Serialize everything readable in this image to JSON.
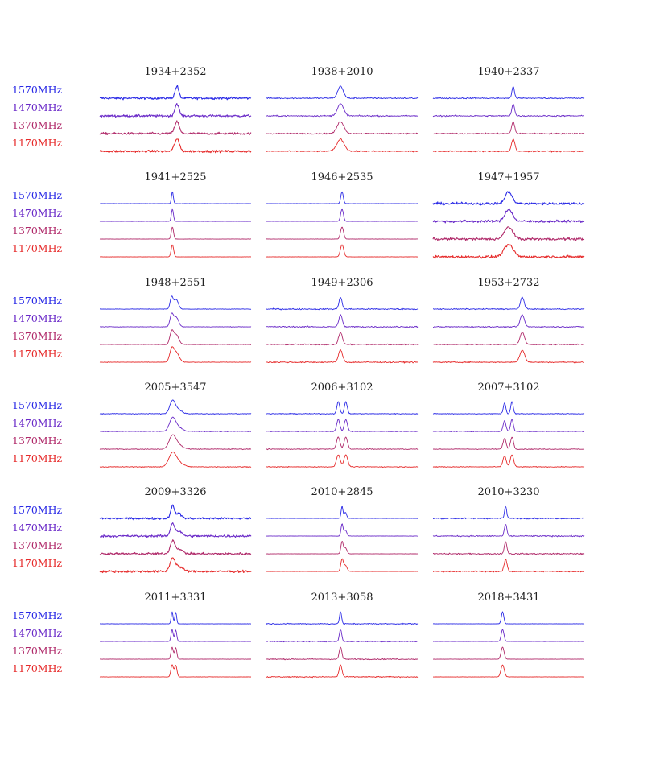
{
  "chart_data": {
    "type": "line",
    "title": "",
    "xlabel": "",
    "ylabel": "",
    "grid": false,
    "legend_position": "left",
    "frequency_bands": [
      {
        "label": "1570MHz",
        "color": "#2a2ae6"
      },
      {
        "label": "1470MHz",
        "color": "#6a2ac8"
      },
      {
        "label": "1370MHz",
        "color": "#b02a6a"
      },
      {
        "label": "1170MHz",
        "color": "#e62a2a"
      }
    ],
    "profiles": [
      {
        "name": "1934+2352",
        "phase": 0.51,
        "components": [
          [
            0.0,
            0.012,
            1.0
          ]
        ],
        "noise": 0.09
      },
      {
        "name": "1938+2010",
        "phase": 0.49,
        "components": [
          [
            0.0,
            0.018,
            1.0
          ]
        ],
        "noise": 0.05
      },
      {
        "name": "1940+2337",
        "phase": 0.53,
        "components": [
          [
            0.0,
            0.008,
            1.0
          ]
        ],
        "noise": 0.05
      },
      {
        "name": "1941+2525",
        "phase": 0.48,
        "components": [
          [
            0.0,
            0.006,
            1.0
          ]
        ],
        "noise": 0.01
      },
      {
        "name": "1946+2535",
        "phase": 0.5,
        "components": [
          [
            0.0,
            0.008,
            1.0
          ]
        ],
        "noise": 0.01
      },
      {
        "name": "1947+1957",
        "phase": 0.5,
        "components": [
          [
            0.0,
            0.022,
            1.0
          ]
        ],
        "noise": 0.1
      },
      {
        "name": "1948+2551",
        "phase": 0.49,
        "components": [
          [
            -0.015,
            0.01,
            1.0
          ],
          [
            0.015,
            0.014,
            0.8
          ]
        ],
        "noise": 0.02
      },
      {
        "name": "1949+2306",
        "phase": 0.49,
        "components": [
          [
            0.0,
            0.01,
            1.0
          ]
        ],
        "noise": 0.05
      },
      {
        "name": "1953+2732",
        "phase": 0.59,
        "components": [
          [
            0.0,
            0.012,
            1.0
          ]
        ],
        "noise": 0.04
      },
      {
        "name": "2005+3547",
        "phase": 0.48,
        "components": [
          [
            0.0,
            0.018,
            1.0
          ],
          [
            0.035,
            0.025,
            0.35
          ]
        ],
        "noise": 0.03
      },
      {
        "name": "2006+3102",
        "phase": 0.5,
        "components": [
          [
            -0.025,
            0.009,
            1.0
          ],
          [
            0.025,
            0.009,
            1.0
          ]
        ],
        "noise": 0.03
      },
      {
        "name": "2007+3102",
        "phase": 0.5,
        "components": [
          [
            -0.027,
            0.008,
            0.9
          ],
          [
            0.022,
            0.008,
            1.0
          ]
        ],
        "noise": 0.03
      },
      {
        "name": "2009+3326",
        "phase": 0.48,
        "components": [
          [
            0.0,
            0.012,
            1.0
          ],
          [
            0.04,
            0.02,
            0.4
          ]
        ],
        "noise": 0.09
      },
      {
        "name": "2010+2845",
        "phase": 0.5,
        "components": [
          [
            0.0,
            0.006,
            1.0
          ],
          [
            0.022,
            0.008,
            0.5
          ]
        ],
        "noise": 0.01
      },
      {
        "name": "2010+3230",
        "phase": 0.48,
        "components": [
          [
            0.0,
            0.007,
            1.0
          ]
        ],
        "noise": 0.05
      },
      {
        "name": "2011+3331",
        "phase": 0.49,
        "components": [
          [
            -0.012,
            0.006,
            1.0
          ],
          [
            0.012,
            0.006,
            0.95
          ]
        ],
        "noise": 0.01
      },
      {
        "name": "2013+3058",
        "phase": 0.49,
        "components": [
          [
            0.0,
            0.007,
            1.0
          ]
        ],
        "noise": 0.04
      },
      {
        "name": "2018+3431",
        "phase": 0.46,
        "components": [
          [
            0.0,
            0.008,
            1.0
          ]
        ],
        "noise": 0.01
      }
    ]
  }
}
